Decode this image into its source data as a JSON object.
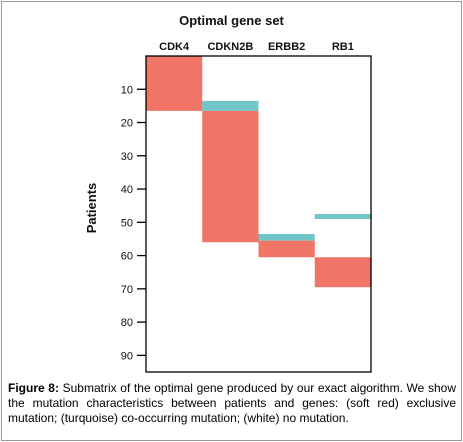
{
  "figure": {
    "caption_label": "Figure 8:",
    "caption_text": " Submatrix of the optimal gene produced by our exact algorithm. We show the mutation characteristics between patients and genes: (soft red) exclusive mutation; (turquoise) co-occurring mutation; (white) no mutation."
  },
  "chart_data": {
    "type": "heatmap",
    "title": "Optimal gene set",
    "ylabel": "Patients",
    "xlabel": "",
    "categories": [
      "CDK4",
      "CDKN2B",
      "ERBB2",
      "RB1"
    ],
    "yticks": [
      "10",
      "20",
      "30",
      "40",
      "50",
      "60",
      "70",
      "80",
      "90"
    ],
    "ytick_values": [
      10,
      20,
      30,
      40,
      50,
      60,
      70,
      80,
      90
    ],
    "ylim": [
      0,
      95
    ],
    "y_inverted": true,
    "colors": {
      "exclusive": "#f07567",
      "co_occurring": "#72c6c8",
      "none": "#ffffff"
    },
    "cells": [
      {
        "gene": "CDK4",
        "start": 0,
        "end": 16.5,
        "kind": "exclusive"
      },
      {
        "gene": "CDKN2B",
        "start": 13.5,
        "end": 16.5,
        "kind": "co_occurring"
      },
      {
        "gene": "CDKN2B",
        "start": 16.5,
        "end": 56,
        "kind": "exclusive"
      },
      {
        "gene": "ERBB2",
        "start": 53.5,
        "end": 55.5,
        "kind": "co_occurring"
      },
      {
        "gene": "ERBB2",
        "start": 55.5,
        "end": 60.5,
        "kind": "exclusive"
      },
      {
        "gene": "RB1",
        "start": 47.5,
        "end": 49,
        "kind": "co_occurring"
      },
      {
        "gene": "RB1",
        "start": 60.5,
        "end": 69.5,
        "kind": "exclusive"
      }
    ]
  }
}
